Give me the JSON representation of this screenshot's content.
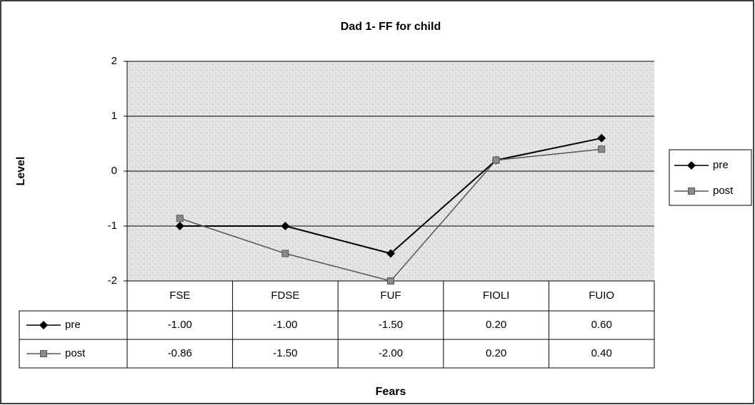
{
  "chart_data": {
    "type": "line",
    "title": "Dad 1- FF for child",
    "x_label": "Fears",
    "y_label": "Level",
    "categories": [
      "FSE",
      "FDSE",
      "FUF",
      "FIOLI",
      "FUIO"
    ],
    "series": [
      {
        "name": "pre",
        "color": "#000000",
        "marker": "diamond",
        "values": [
          -1,
          -1,
          -1.5,
          0.2,
          0.6
        ],
        "value_labels": [
          "-1.00",
          "-1.00",
          "-1.50",
          "0.20",
          "0.60"
        ]
      },
      {
        "name": "post",
        "color": "#555555",
        "marker": "square",
        "values": [
          -0.86,
          -1.5,
          -2,
          0.2,
          0.4
        ],
        "value_labels": [
          "-0.86",
          "-1.50",
          "-2.00",
          "0.20",
          "0.40"
        ]
      }
    ],
    "ylim": [
      -2,
      2
    ],
    "yticks": [
      -2,
      -1,
      0,
      1,
      2
    ],
    "grid": true,
    "legend": "right",
    "data_table": true
  }
}
